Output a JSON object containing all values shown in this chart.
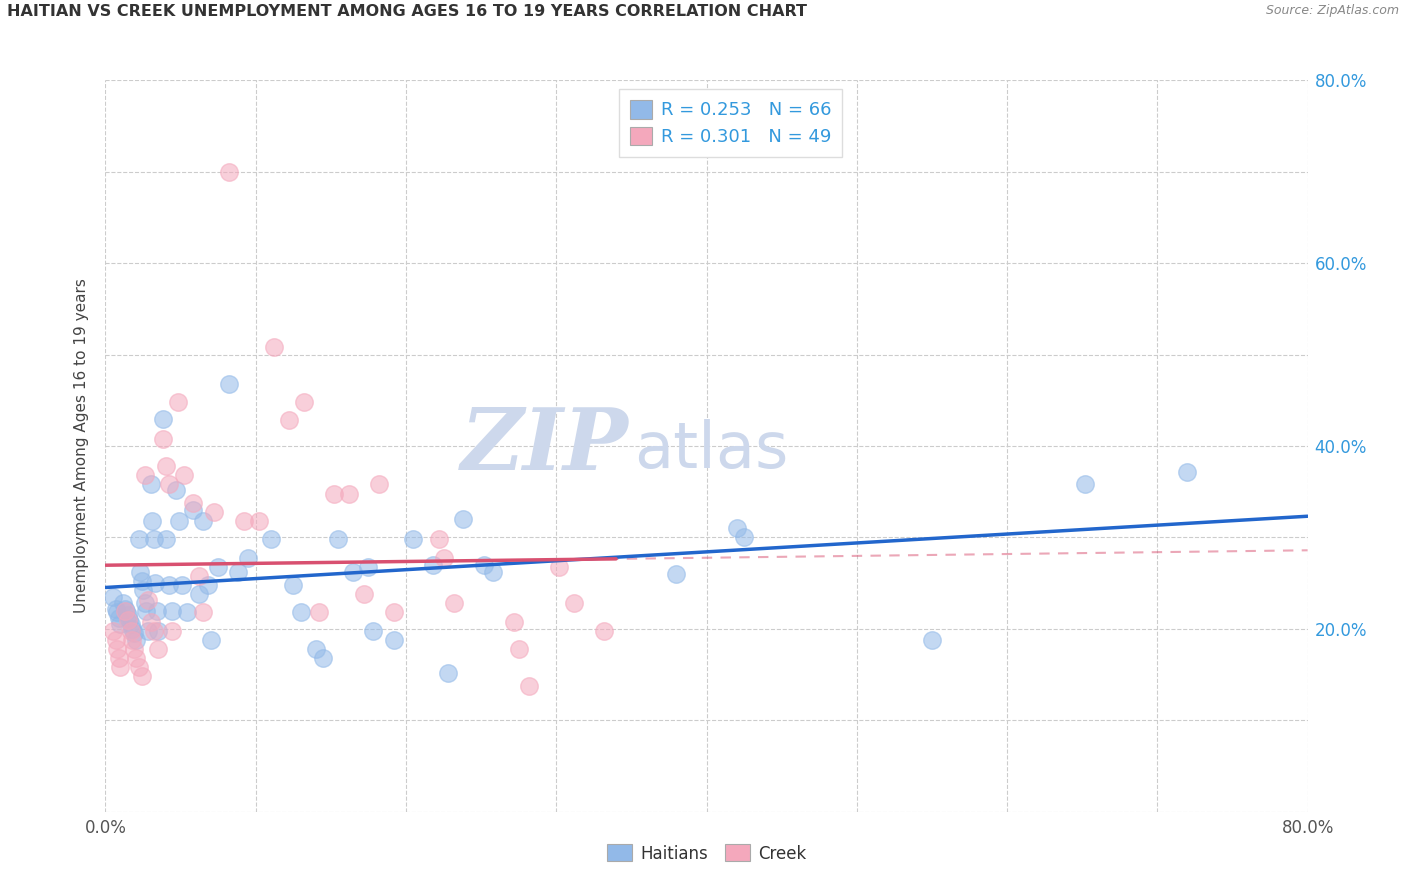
{
  "title": "HAITIAN VS CREEK UNEMPLOYMENT AMONG AGES 16 TO 19 YEARS CORRELATION CHART",
  "source": "Source: ZipAtlas.com",
  "ylabel": "Unemployment Among Ages 16 to 19 years",
  "xlim": [
    0.0,
    0.8
  ],
  "ylim": [
    0.0,
    0.8
  ],
  "haitian_R": 0.253,
  "haitian_N": 66,
  "creek_R": 0.301,
  "creek_N": 49,
  "haitian_color": "#92b9e8",
  "creek_color": "#f4a8bc",
  "trend_haitian_color": "#2266cc",
  "trend_creek_color": "#d85070",
  "watermark_zip": "ZIP",
  "watermark_atlas": "atlas",
  "watermark_color": "#cdd8ec",
  "legend_label_haitian": "Haitians",
  "legend_label_creek": "Creek",
  "haitian_x": [
    0.005,
    0.007,
    0.008,
    0.009,
    0.01,
    0.012,
    0.013,
    0.014,
    0.015,
    0.016,
    0.017,
    0.018,
    0.019,
    0.02,
    0.022,
    0.023,
    0.024,
    0.025,
    0.026,
    0.027,
    0.028,
    0.03,
    0.031,
    0.032,
    0.033,
    0.034,
    0.035,
    0.038,
    0.04,
    0.042,
    0.044,
    0.047,
    0.049,
    0.051,
    0.054,
    0.058,
    0.062,
    0.065,
    0.068,
    0.07,
    0.075,
    0.082,
    0.088,
    0.095,
    0.11,
    0.125,
    0.13,
    0.14,
    0.145,
    0.155,
    0.165,
    0.175,
    0.178,
    0.192,
    0.205,
    0.218,
    0.228,
    0.238,
    0.252,
    0.258,
    0.38,
    0.42,
    0.425,
    0.55,
    0.652,
    0.72
  ],
  "haitian_y": [
    0.235,
    0.222,
    0.218,
    0.212,
    0.205,
    0.228,
    0.222,
    0.22,
    0.215,
    0.21,
    0.205,
    0.2,
    0.195,
    0.188,
    0.298,
    0.262,
    0.252,
    0.242,
    0.228,
    0.22,
    0.198,
    0.358,
    0.318,
    0.298,
    0.25,
    0.22,
    0.198,
    0.43,
    0.298,
    0.248,
    0.22,
    0.352,
    0.318,
    0.248,
    0.218,
    0.33,
    0.238,
    0.318,
    0.248,
    0.188,
    0.268,
    0.468,
    0.262,
    0.278,
    0.298,
    0.248,
    0.218,
    0.178,
    0.168,
    0.298,
    0.262,
    0.268,
    0.198,
    0.188,
    0.298,
    0.27,
    0.152,
    0.32,
    0.27,
    0.262,
    0.26,
    0.31,
    0.3,
    0.188,
    0.358,
    0.372
  ],
  "creek_x": [
    0.005,
    0.007,
    0.008,
    0.009,
    0.01,
    0.013,
    0.015,
    0.017,
    0.018,
    0.019,
    0.02,
    0.022,
    0.024,
    0.026,
    0.028,
    0.03,
    0.032,
    0.035,
    0.038,
    0.04,
    0.042,
    0.044,
    0.048,
    0.052,
    0.058,
    0.062,
    0.065,
    0.072,
    0.082,
    0.092,
    0.102,
    0.112,
    0.122,
    0.132,
    0.142,
    0.152,
    0.162,
    0.172,
    0.182,
    0.192,
    0.222,
    0.225,
    0.232,
    0.272,
    0.275,
    0.282,
    0.302,
    0.312,
    0.332
  ],
  "creek_y": [
    0.198,
    0.188,
    0.178,
    0.168,
    0.158,
    0.22,
    0.21,
    0.198,
    0.188,
    0.178,
    0.168,
    0.158,
    0.148,
    0.368,
    0.232,
    0.208,
    0.198,
    0.178,
    0.408,
    0.378,
    0.358,
    0.198,
    0.448,
    0.368,
    0.338,
    0.258,
    0.218,
    0.328,
    0.7,
    0.318,
    0.318,
    0.508,
    0.428,
    0.448,
    0.218,
    0.348,
    0.348,
    0.238,
    0.358,
    0.218,
    0.298,
    0.278,
    0.228,
    0.208,
    0.178,
    0.138,
    0.268,
    0.228,
    0.198
  ]
}
